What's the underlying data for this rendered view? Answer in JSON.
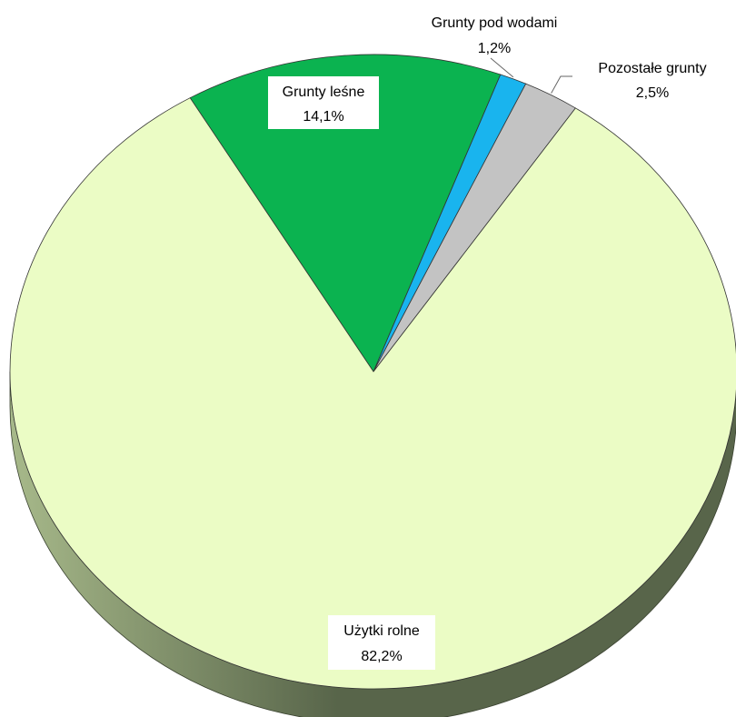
{
  "chart_data": {
    "type": "pie",
    "title": "",
    "slices": [
      {
        "label": "Użytki rolne",
        "value": 82.2,
        "value_text": "82,2%",
        "color": "#EBFCC5"
      },
      {
        "label": "Grunty leśne",
        "value": 14.1,
        "value_text": "14,1%",
        "color": "#0BB350"
      },
      {
        "label": "Grunty pod wodami",
        "value": 1.2,
        "value_text": "1,2%",
        "color": "#19B4EE"
      },
      {
        "label": "Pozostałe grunty",
        "value": 2.5,
        "value_text": "2,5%",
        "color": "#C3C3C3"
      }
    ],
    "style": "3d-tilted",
    "side_color_light": "#A7B98A",
    "side_color_dark": "#58654A",
    "label_box_color": "#FFFFFF"
  }
}
